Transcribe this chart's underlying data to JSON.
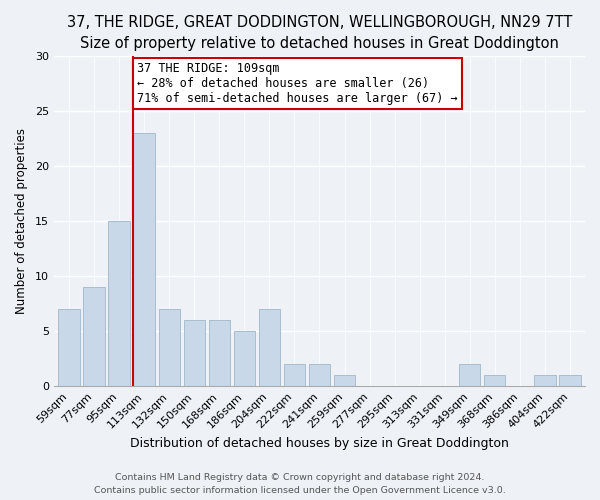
{
  "title": "37, THE RIDGE, GREAT DODDINGTON, WELLINGBOROUGH, NN29 7TT",
  "subtitle": "Size of property relative to detached houses in Great Doddington",
  "xlabel": "Distribution of detached houses by size in Great Doddington",
  "ylabel": "Number of detached properties",
  "footer_line1": "Contains HM Land Registry data © Crown copyright and database right 2024.",
  "footer_line2": "Contains public sector information licensed under the Open Government Licence v3.0.",
  "bin_labels": [
    "59sqm",
    "77sqm",
    "95sqm",
    "113sqm",
    "132sqm",
    "150sqm",
    "168sqm",
    "186sqm",
    "204sqm",
    "222sqm",
    "241sqm",
    "259sqm",
    "277sqm",
    "295sqm",
    "313sqm",
    "331sqm",
    "349sqm",
    "368sqm",
    "386sqm",
    "404sqm",
    "422sqm"
  ],
  "bar_values": [
    7,
    9,
    15,
    23,
    7,
    6,
    6,
    5,
    7,
    2,
    2,
    1,
    0,
    0,
    0,
    0,
    2,
    1,
    0,
    1,
    1
  ],
  "bar_color": "#c8d8e8",
  "bar_edge_color": "#a8bece",
  "vline_color": "#cc0000",
  "annotation_line1": "37 THE RIDGE: 109sqm",
  "annotation_line2": "← 28% of detached houses are smaller (26)",
  "annotation_line3": "71% of semi-detached houses are larger (67) →",
  "annotation_box_color": "white",
  "annotation_box_edge_color": "#cc0000",
  "ylim": [
    0,
    30
  ],
  "yticks": [
    0,
    5,
    10,
    15,
    20,
    25,
    30
  ],
  "background_color": "#eef2f7",
  "title_fontsize": 10.5,
  "subtitle_fontsize": 9.5,
  "xlabel_fontsize": 9,
  "ylabel_fontsize": 8.5,
  "tick_fontsize": 8,
  "annotation_fontsize": 8.5,
  "footer_fontsize": 6.8
}
